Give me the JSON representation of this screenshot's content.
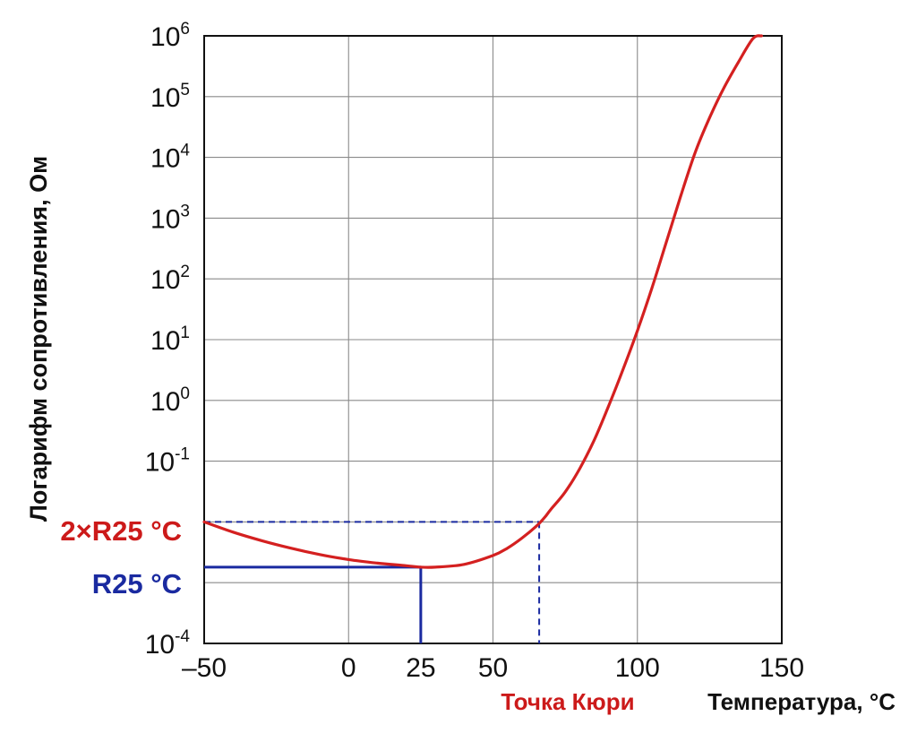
{
  "chart_data": {
    "type": "line",
    "title": "",
    "xlabel": "Температура, °C",
    "ylabel": "Логарифм сопротивления, Ом",
    "x_scale": "linear",
    "y_scale": "log",
    "xlim": [
      -50,
      150
    ],
    "x_ticks": [
      {
        "value": -50,
        "label": "–50"
      },
      {
        "value": 0,
        "label": "0"
      },
      {
        "value": 25,
        "label": "25"
      },
      {
        "value": 50,
        "label": "50"
      },
      {
        "value": 100,
        "label": "100"
      },
      {
        "value": 150,
        "label": "150"
      }
    ],
    "x_grid": [
      -50,
      0,
      50,
      100,
      150
    ],
    "y_ticks": [
      {
        "value": 1000000,
        "base": "10",
        "exp": "6"
      },
      {
        "value": 100000,
        "base": "10",
        "exp": "5"
      },
      {
        "value": 10000,
        "base": "10",
        "exp": "4"
      },
      {
        "value": 1000,
        "base": "10",
        "exp": "3"
      },
      {
        "value": 100,
        "base": "10",
        "exp": "2"
      },
      {
        "value": 10,
        "base": "10",
        "exp": "1"
      },
      {
        "value": 1,
        "base": "10",
        "exp": "0"
      },
      {
        "value": 0.1,
        "base": "10",
        "exp": "-1"
      },
      {
        "value": 0.01,
        "base": "",
        "exp": ""
      },
      {
        "value": 0.001,
        "base": "",
        "exp": ""
      },
      {
        "value": 0.0001,
        "base": "10",
        "exp": "-4"
      }
    ],
    "ylim": [
      0.0001,
      1000000
    ],
    "grid": true,
    "series": [
      {
        "color": "#d42020",
        "points": [
          [
            -50,
            0.01
          ],
          [
            -40,
            0.0068
          ],
          [
            -30,
            0.0049
          ],
          [
            -20,
            0.0037
          ],
          [
            -10,
            0.0029
          ],
          [
            0,
            0.0024
          ],
          [
            10,
            0.0021
          ],
          [
            20,
            0.0019
          ],
          [
            25,
            0.0018
          ],
          [
            30,
            0.0018
          ],
          [
            40,
            0.002
          ],
          [
            50,
            0.0028
          ],
          [
            55,
            0.0037
          ],
          [
            60,
            0.0054
          ],
          [
            65,
            0.0085
          ],
          [
            68,
            0.012
          ],
          [
            70,
            0.016
          ],
          [
            75,
            0.031
          ],
          [
            80,
            0.075
          ],
          [
            85,
            0.22
          ],
          [
            90,
            0.8
          ],
          [
            95,
            3.2
          ],
          [
            100,
            14
          ],
          [
            105,
            70
          ],
          [
            110,
            400
          ],
          [
            115,
            2300
          ],
          [
            120,
            12000
          ],
          [
            125,
            45000
          ],
          [
            130,
            140000
          ],
          [
            135,
            370000
          ],
          [
            140,
            900000
          ],
          [
            143,
            1300000
          ]
        ]
      }
    ],
    "annotations": {
      "two_r25": {
        "label": "2×R25 °C",
        "y": 0.01,
        "x_end": 66,
        "color": "#cc1a1a",
        "style": "dashed",
        "line_color": "#1a2aa0"
      },
      "r25": {
        "label": "R25 °C",
        "y": 0.0018,
        "x_end": 25,
        "color": "#1a2aa0",
        "style": "solid"
      },
      "curie": {
        "label": "Точка Кюри",
        "x": 66,
        "color": "#cc1a1a"
      }
    }
  }
}
